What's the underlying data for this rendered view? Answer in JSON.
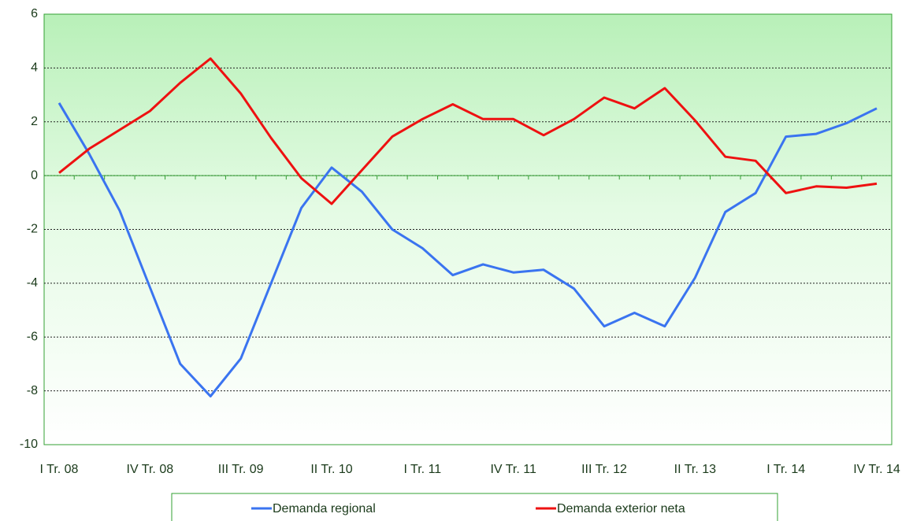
{
  "chart_data": {
    "type": "line",
    "categories": [
      "I Tr. 08",
      null,
      null,
      "IV Tr. 08",
      null,
      null,
      "III Tr. 09",
      null,
      null,
      "II Tr. 10",
      null,
      null,
      "I Tr. 11",
      null,
      null,
      "IV Tr. 11",
      null,
      null,
      "III Tr. 12",
      null,
      null,
      "II Tr. 13",
      null,
      null,
      "I Tr. 14",
      null,
      null,
      "IV Tr. 14"
    ],
    "series": [
      {
        "name": "Demanda regional",
        "color": "#3a74f0",
        "values": [
          2.7,
          0.8,
          -1.3,
          -4.15,
          -7.0,
          -8.2,
          -6.8,
          -4.0,
          -1.2,
          0.3,
          -0.6,
          -2.0,
          -2.7,
          -3.7,
          -3.3,
          -3.6,
          -3.5,
          -4.2,
          -5.6,
          -5.1,
          -5.6,
          -3.8,
          -1.35,
          -0.65,
          1.45,
          1.55,
          1.95,
          2.5
        ]
      },
      {
        "name": "Demanda exterior neta",
        "color": "#ee1111",
        "values": [
          0.1,
          1.0,
          1.7,
          2.4,
          3.45,
          4.35,
          3.05,
          1.4,
          -0.1,
          -1.05,
          0.2,
          1.45,
          2.1,
          2.65,
          2.1,
          2.1,
          1.5,
          2.1,
          2.9,
          2.5,
          3.25,
          2.05,
          0.7,
          0.55,
          -0.65,
          -0.4,
          -0.45,
          -0.3
        ]
      }
    ],
    "ylim": [
      -10,
      6
    ],
    "yticks": [
      -10,
      -8,
      -6,
      -4,
      -2,
      0,
      2,
      4,
      6
    ],
    "grid": true
  }
}
